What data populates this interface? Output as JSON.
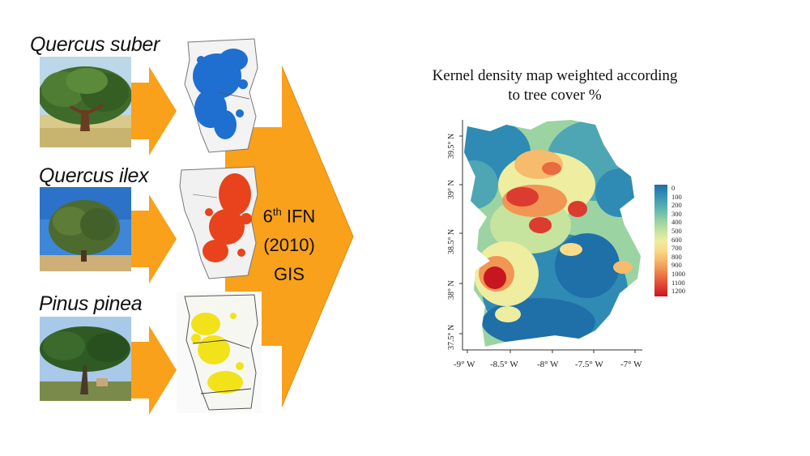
{
  "left_panel": {
    "species": [
      {
        "name": "Quercus suber",
        "map_color": "#1f6fd1",
        "tree_photo": "cork-oak-tree"
      },
      {
        "name": "Quercus ilex",
        "map_color": "#e8431c",
        "tree_photo": "holm-oak-tree"
      },
      {
        "name": "Pinus pinea",
        "map_color": "#f2e21a",
        "tree_photo": "stone-pine-tree"
      }
    ],
    "arrow_color": "#f9a11b",
    "ifn": {
      "line1_num": "6",
      "line1_sup": "th",
      "line1_rest": " IFN",
      "line2": "(2010)",
      "line3": "GIS"
    }
  },
  "map": {
    "title_line1": "Kernel density map weighted according",
    "title_line2": "to tree cover %",
    "y_ticks": [
      "39.5° N",
      "39° N",
      "38.5° N",
      "38° N",
      "37.5° N"
    ],
    "x_ticks": [
      "-9° W",
      "-8.5° W",
      "-8° W",
      "-7.5° W",
      "-7° W"
    ],
    "legend": [
      "0",
      "100",
      "200",
      "300",
      "400",
      "500",
      "600",
      "700",
      "800",
      "900",
      "1000",
      "1100",
      "1200"
    ],
    "legend_colors": [
      "#1f6fa8",
      "#2f8bb4",
      "#4ea6b4",
      "#6fbfab",
      "#9bd3a2",
      "#c6e49d",
      "#eeeda0",
      "#f9dc8a",
      "#f7bb6c",
      "#f29653",
      "#ea6a40",
      "#dc3b30",
      "#c7161f"
    ]
  }
}
